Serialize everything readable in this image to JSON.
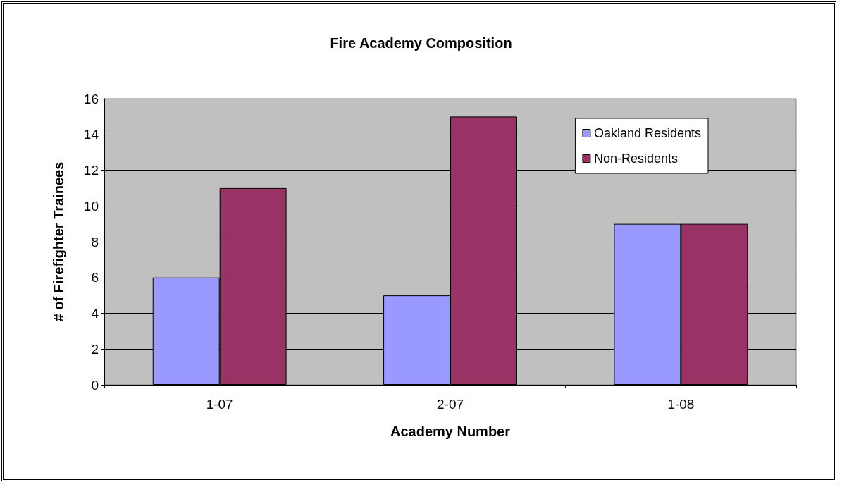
{
  "chart_data": {
    "type": "bar",
    "title": "Fire Academy Composition",
    "xlabel": "Academy Number",
    "ylabel": "# of Firefighter Trainees",
    "categories": [
      "1-07",
      "2-07",
      "1-08"
    ],
    "series": [
      {
        "name": "Oakland Residents",
        "color": "#9999ff",
        "values": [
          6,
          5,
          9
        ]
      },
      {
        "name": "Non-Residents",
        "color": "#993366",
        "values": [
          11,
          15,
          9
        ]
      }
    ],
    "ylim": [
      0,
      16
    ],
    "yticks": [
      0,
      2,
      4,
      6,
      8,
      10,
      12,
      14,
      16
    ],
    "grid": "y",
    "legend": "top right"
  }
}
